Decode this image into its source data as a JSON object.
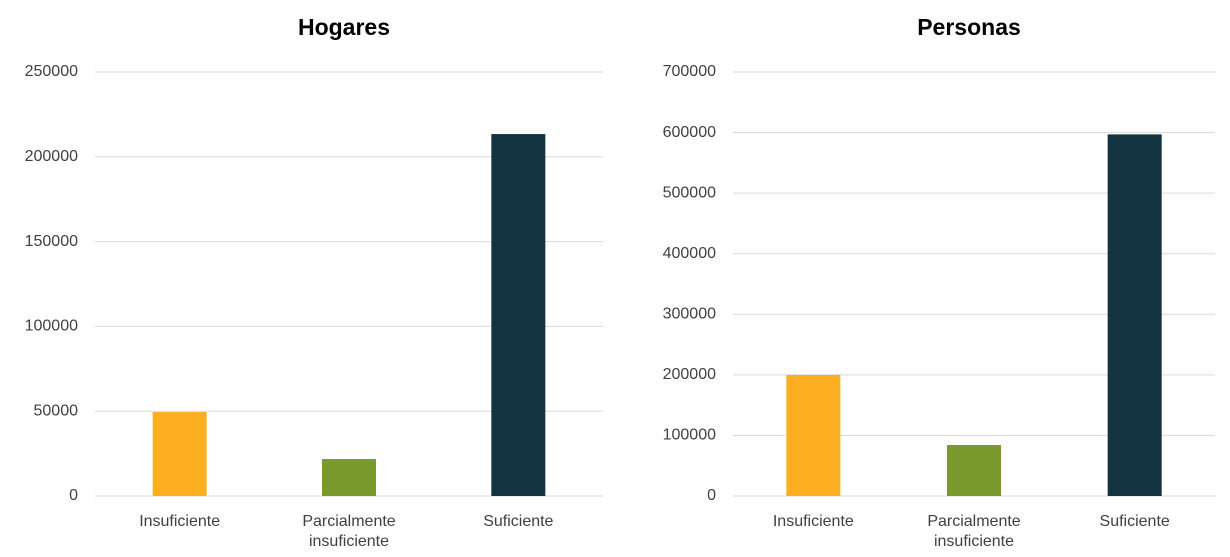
{
  "chart_data": [
    {
      "type": "bar",
      "title": "Hogares",
      "categories": [
        "Insuficiente",
        "Parcialmente insuficiente",
        "Suficiente"
      ],
      "values": [
        49500,
        21800,
        213400
      ],
      "colors": [
        "#fbae20",
        "#7a9a2e",
        "#12333f"
      ],
      "ylim": [
        0,
        250000
      ],
      "yticks": [
        0,
        50000,
        100000,
        150000,
        200000,
        250000
      ],
      "grid": true
    },
    {
      "type": "bar",
      "title": "Personas",
      "categories": [
        "Insuficiente",
        "Parcialmente insuficiente",
        "Suficiente"
      ],
      "values": [
        199800,
        84200,
        597000
      ],
      "colors": [
        "#fbae20",
        "#7a9a2e",
        "#12333f"
      ],
      "ylim": [
        0,
        700000
      ],
      "yticks": [
        0,
        100000,
        200000,
        300000,
        400000,
        500000,
        600000,
        700000
      ],
      "grid": true
    }
  ]
}
